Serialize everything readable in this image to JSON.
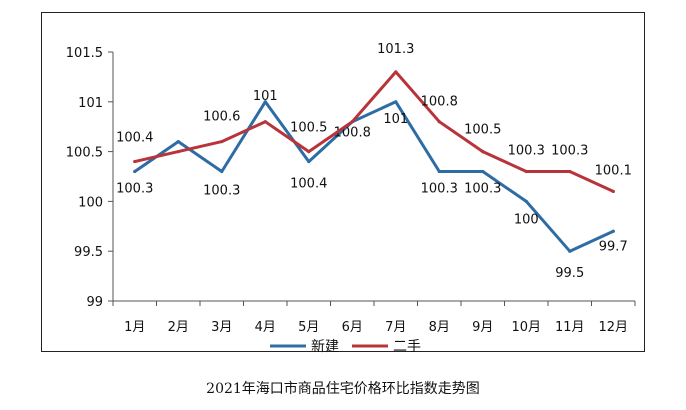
{
  "caption": "2021年海口市商品住宅价格环比指数走势图",
  "chart_data": {
    "type": "line",
    "categories": [
      "1月",
      "2月",
      "3月",
      "4月",
      "5月",
      "6月",
      "7月",
      "8月",
      "9月",
      "10月",
      "11月",
      "12月"
    ],
    "series": [
      {
        "name": "新建",
        "color": "#2e6ca4",
        "values": [
          100.3,
          100.6,
          100.3,
          101,
          100.4,
          100.8,
          101,
          100.3,
          100.3,
          100,
          99.5,
          99.7
        ],
        "labels": [
          "100.3",
          "",
          "100.3",
          "101",
          "100.4",
          "100.8",
          "101",
          "100.3",
          "100.3",
          "100",
          "99.5",
          "99.7"
        ]
      },
      {
        "name": "二手",
        "color": "#b8343a",
        "values": [
          100.4,
          100.5,
          100.6,
          100.8,
          100.5,
          100.8,
          101.3,
          100.8,
          100.5,
          100.3,
          100.3,
          100.1
        ],
        "labels": [
          "100.4",
          "",
          "100.6",
          "",
          "100.5",
          "",
          "101.3",
          "100.8",
          "100.5",
          "100.3",
          "100.3",
          "100.1"
        ]
      }
    ],
    "yticks": [
      "99",
      "99.5",
      "100",
      "100.5",
      "101",
      "101.5"
    ],
    "ylim": [
      99,
      101.5
    ],
    "legend_position": "bottom",
    "grid": false
  }
}
